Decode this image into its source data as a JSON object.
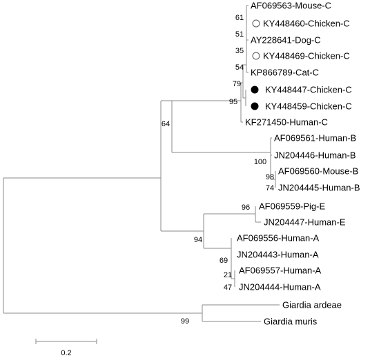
{
  "leaves": [
    "AF069563-Mouse-C",
    "KY448460-Chicken-C",
    "AY228641-Dog-C",
    "KY448469-Chicken-C",
    "KP866789-Cat-C",
    "KY448447-Chicken-C",
    "KY448459-Chicken-C",
    "KF271450-Human-C",
    "AF069561-Human-B",
    "JN204446-Human-B",
    "AF069560-Mouse-B",
    "JN204445-Human-B",
    "AF069559-Pig-E",
    "JN204447-Human-E",
    "AF069556-Human-A",
    "JN204443-Human-A",
    "AF069557-Human-A",
    "JN204444-Human-A",
    "Giardia ardeae",
    "Giardia muris"
  ],
  "bootstrap_values": [
    61,
    51,
    35,
    54,
    79,
    95,
    64,
    100,
    98,
    74,
    96,
    94,
    69,
    21,
    47,
    99
  ],
  "scale_bar": "0.2"
}
